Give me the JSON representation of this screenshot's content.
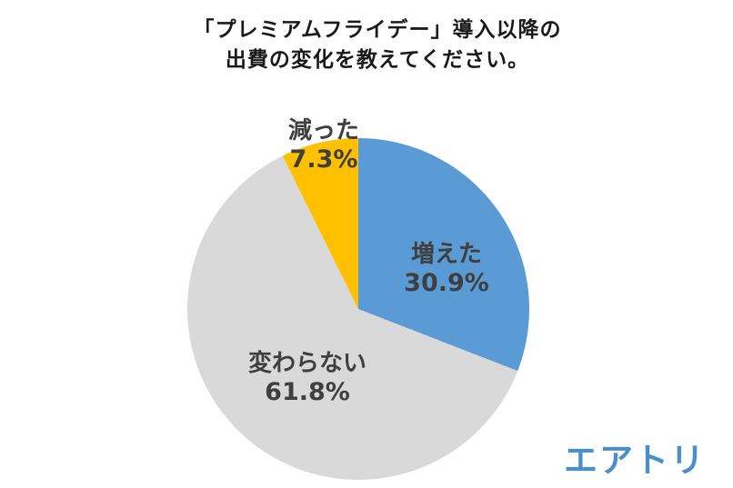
{
  "title": {
    "line1": "「プレミアムフライデー」導入以降の",
    "line2": "出費の変化を教えてください。"
  },
  "chart_data": {
    "type": "pie",
    "title": "「プレミアムフライデー」導入以降の出費の変化を教えてください。",
    "start_angle_deg": 0,
    "direction": "clockwise",
    "segments": [
      {
        "label": "増えた",
        "value": 30.9,
        "display_value": "30.9%",
        "color": "#5B9BD5"
      },
      {
        "label": "変わらない",
        "value": 61.8,
        "display_value": "61.8%",
        "color": "#D9D9D9"
      },
      {
        "label": "減った",
        "value": 7.3,
        "display_value": "7.3%",
        "color": "#FFC000"
      }
    ],
    "label_color": "#3F3F3F",
    "legend": "none",
    "labels_on_chart": true
  },
  "logo": {
    "text": "エアトリ",
    "color": "#4A8FC7"
  }
}
